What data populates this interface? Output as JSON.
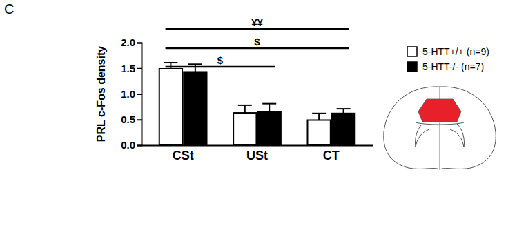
{
  "chart_data": {
    "type": "bar",
    "panel_label": "C",
    "categories": [
      "CSt",
      "USt",
      "CT"
    ],
    "series": [
      {
        "name": "5-HTT+/+ (n=9)",
        "color": "#ffffff",
        "values": [
          1.49,
          0.63,
          0.49
        ],
        "errors": [
          0.12,
          0.15,
          0.13
        ]
      },
      {
        "name": "5-HTT-/- (n=7)",
        "color": "#000000",
        "values": [
          1.43,
          0.65,
          0.62
        ],
        "errors": [
          0.15,
          0.16,
          0.09
        ]
      }
    ],
    "y_label": "PRL c-Fos density",
    "ylim": [
      0,
      2
    ],
    "yticks": [
      {
        "value": 0,
        "label": "0.0"
      },
      {
        "value": 0.5,
        "label": "0.5"
      },
      {
        "value": 1,
        "label": "1.0"
      },
      {
        "value": 1.5,
        "label": "1.5"
      },
      {
        "value": 2,
        "label": "2.0"
      }
    ],
    "annotations": [
      {
        "text": "$",
        "categories": [
          "CSt",
          "USt"
        ]
      },
      {
        "text": "$",
        "categories": [
          "CSt",
          "CT"
        ]
      },
      {
        "text": "¥¥",
        "categories": [
          "CSt",
          "CT"
        ]
      }
    ],
    "legend": "top-right",
    "grid": false
  }
}
